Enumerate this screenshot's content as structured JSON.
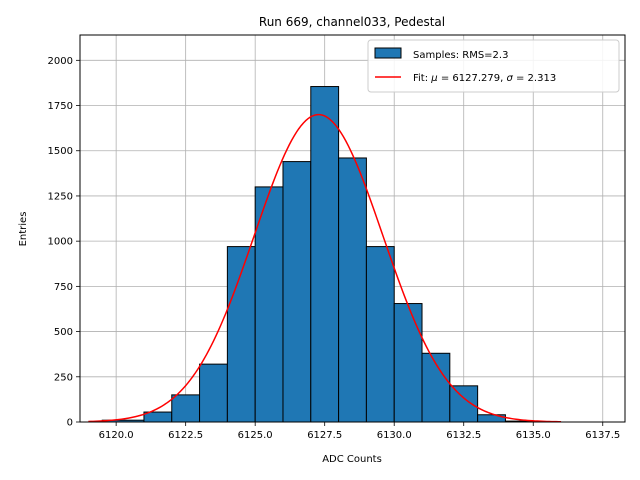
{
  "chart_data": {
    "type": "bar",
    "title": "Run 669, channel033, Pedestal",
    "xlabel": "ADC Counts",
    "ylabel": "Entries",
    "xlim": [
      6118.7,
      6138.3
    ],
    "ylim": [
      0,
      2140
    ],
    "xticks": [
      6120.0,
      6122.5,
      6125.0,
      6127.5,
      6130.0,
      6132.5,
      6135.0,
      6137.5
    ],
    "xtick_labels": [
      "6120.0",
      "6122.5",
      "6125.0",
      "6127.5",
      "6130.0",
      "6132.5",
      "6135.0",
      "6137.5"
    ],
    "yticks": [
      0,
      250,
      500,
      750,
      1000,
      1250,
      1500,
      1750,
      2000
    ],
    "ytick_labels": [
      "0",
      "250",
      "500",
      "750",
      "1000",
      "1250",
      "1500",
      "1750",
      "2000"
    ],
    "grid": true,
    "legend_position": "top-right",
    "bins": [
      {
        "x0": 6119.5,
        "x1": 6121.0,
        "value": 10
      },
      {
        "x0": 6121.0,
        "x1": 6122.0,
        "value": 55
      },
      {
        "x0": 6122.0,
        "x1": 6123.0,
        "value": 150
      },
      {
        "x0": 6123.0,
        "x1": 6124.0,
        "value": 320
      },
      {
        "x0": 6124.0,
        "x1": 6125.0,
        "value": 970
      },
      {
        "x0": 6125.0,
        "x1": 6126.0,
        "value": 1300
      },
      {
        "x0": 6126.0,
        "x1": 6127.0,
        "value": 1440
      },
      {
        "x0": 6127.0,
        "x1": 6128.0,
        "value": 1855
      },
      {
        "x0": 6128.0,
        "x1": 6129.0,
        "value": 1460
      },
      {
        "x0": 6129.0,
        "x1": 6130.0,
        "value": 970
      },
      {
        "x0": 6130.0,
        "x1": 6131.0,
        "value": 655
      },
      {
        "x0": 6131.0,
        "x1": 6132.0,
        "value": 380
      },
      {
        "x0": 6132.0,
        "x1": 6133.0,
        "value": 200
      },
      {
        "x0": 6133.0,
        "x1": 6134.0,
        "value": 40
      },
      {
        "x0": 6134.0,
        "x1": 6135.0,
        "value": 5
      }
    ],
    "fit": {
      "mean": 6127.279,
      "sigma": 2.313,
      "amplitude": 1700,
      "x_range": [
        6119.0,
        6136.0
      ]
    },
    "series": [
      {
        "name": "Samples: RMS=2.3",
        "kind": "histogram",
        "color": "#1f77b4",
        "edge_color": "#000000"
      },
      {
        "name_prefix": "Fit: ",
        "name_mu_label": "μ",
        "name_mu_value": " = 6127.279, ",
        "name_sigma_label": "σ",
        "name_sigma_value": " = 2.313",
        "kind": "line",
        "color": "#ff0000"
      }
    ]
  }
}
